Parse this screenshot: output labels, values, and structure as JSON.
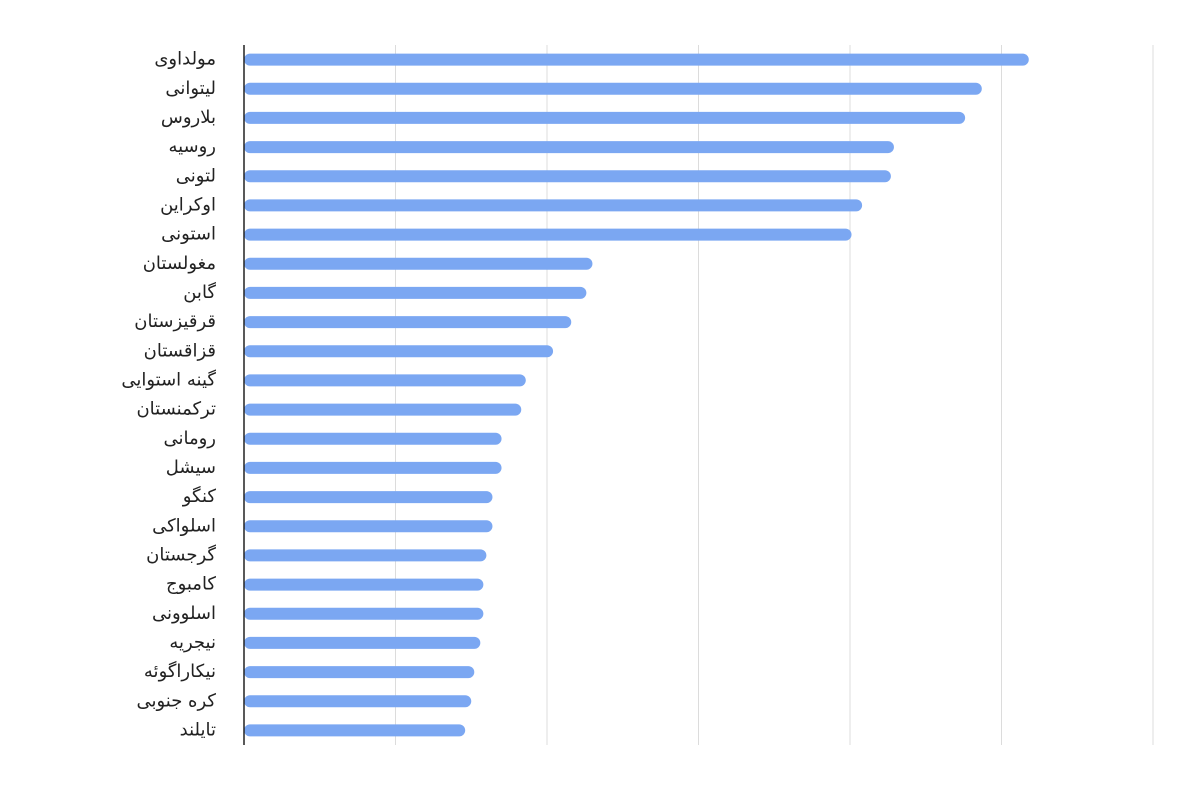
{
  "chart_data": {
    "type": "bar",
    "orientation": "horizontal",
    "color": "#7ba7f2",
    "grid": true,
    "categories": [
      "مولداوی",
      "لیتوانی",
      "بلاروس",
      "روسیه",
      "لتونی",
      "اوکراین",
      "استونی",
      "مغولستان",
      "گابن",
      "قرقیزستان",
      "قزاقستان",
      "گینه استوایی",
      "ترکمنستان",
      "رومانی",
      "سیشل",
      "کنگو",
      "اسلواکی",
      "گرجستان",
      "کامبوج",
      "اسلوونی",
      "نیجریه",
      "نیکاراگوئه",
      "کره جنوبی",
      "تایلند"
    ],
    "values": [
      5.18,
      4.87,
      4.76,
      4.29,
      4.27,
      4.08,
      4.01,
      2.3,
      2.26,
      2.16,
      2.04,
      1.86,
      1.83,
      1.7,
      1.7,
      1.64,
      1.64,
      1.6,
      1.58,
      1.58,
      1.56,
      1.52,
      1.5,
      1.46
    ],
    "xlim": [
      0,
      6
    ],
    "xticks": [
      1,
      2,
      3,
      4,
      5,
      6
    ]
  }
}
